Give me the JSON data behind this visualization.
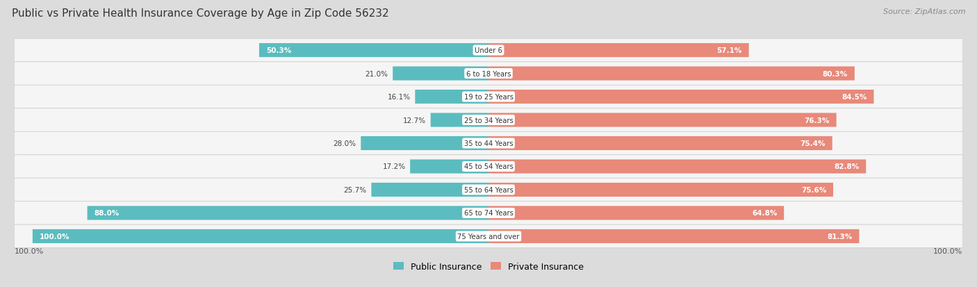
{
  "title": "Public vs Private Health Insurance Coverage by Age in Zip Code 56232",
  "source": "Source: ZipAtlas.com",
  "categories": [
    "Under 6",
    "6 to 18 Years",
    "19 to 25 Years",
    "25 to 34 Years",
    "35 to 44 Years",
    "45 to 54 Years",
    "55 to 64 Years",
    "65 to 74 Years",
    "75 Years and over"
  ],
  "public_values": [
    50.3,
    21.0,
    16.1,
    12.7,
    28.0,
    17.2,
    25.7,
    88.0,
    100.0
  ],
  "private_values": [
    57.1,
    80.3,
    84.5,
    76.3,
    75.4,
    82.8,
    75.6,
    64.8,
    81.3
  ],
  "public_color": "#5bbcbf",
  "private_color": "#e8897a",
  "bg_color": "#dcdcdc",
  "row_bg_color": "#f5f5f5",
  "title_color": "#333333",
  "source_color": "#888888",
  "bar_height": 0.6,
  "legend_labels": [
    "Public Insurance",
    "Private Insurance"
  ],
  "xlim": 105,
  "label_threshold": 50
}
